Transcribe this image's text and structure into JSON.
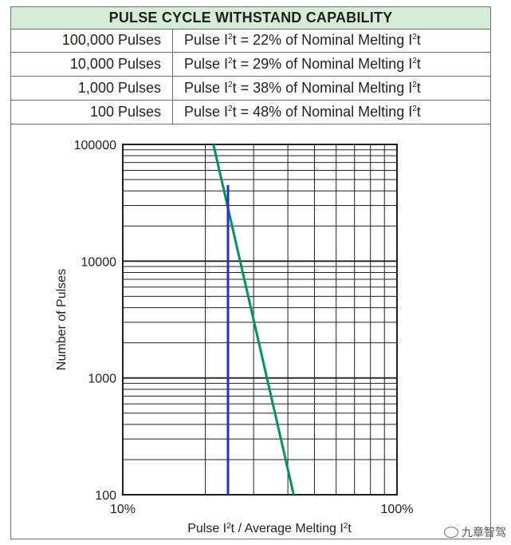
{
  "title": "PULSE CYCLE WITHSTAND CAPABILITY",
  "table": {
    "rows": [
      {
        "pulses": "100,000 Pulses",
        "rating": "Pulse I²t = 22% of Nominal Melting I²t"
      },
      {
        "pulses": "10,000 Pulses",
        "rating": "Pulse I²t = 29% of Nominal Melting I²t"
      },
      {
        "pulses": "1,000 Pulses",
        "rating": "Pulse I²t = 38% of Nominal Melting I²t"
      },
      {
        "pulses": "100 Pulses",
        "rating": "Pulse I²t = 48% of Nominal Melting I²t"
      }
    ]
  },
  "chart_data": {
    "type": "line",
    "x_scale": "log",
    "y_scale": "log",
    "xlim": [
      10,
      100
    ],
    "ylim": [
      100,
      100000
    ],
    "x_tick_labels": [
      {
        "value": 10,
        "label": "10%"
      },
      {
        "value": 100,
        "label": "100%"
      }
    ],
    "y_tick_labels": [
      {
        "value": 100,
        "label": "100"
      },
      {
        "value": 1000,
        "label": "1000"
      },
      {
        "value": 10000,
        "label": "10000"
      },
      {
        "value": 100000,
        "label": "100000"
      }
    ],
    "xlabel": "Pulse I²t / Average Melting I²t",
    "ylabel": "Number of Pulses",
    "grid": true,
    "series": [
      {
        "color": "#00955f",
        "x": [
          21.4,
          42
        ],
        "y": [
          100000,
          100
        ]
      },
      {
        "color": "#2b2bd6",
        "x": [
          24.2,
          24.2
        ],
        "y": [
          100,
          45000
        ]
      }
    ]
  },
  "watermark": {
    "text": "九章智驾"
  },
  "colors": {
    "header_bg": "#d5ecd6",
    "border": "#6d6e71",
    "curve_green": "#00955f",
    "curve_blue": "#2b2bd6"
  }
}
